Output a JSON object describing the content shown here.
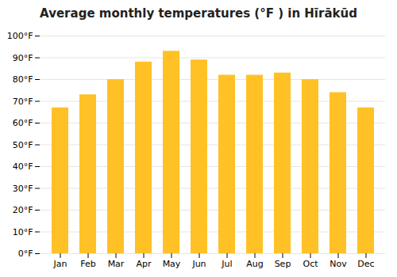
{
  "chart_data": {
    "type": "bar",
    "title": "Average monthly temperatures (°F ) in Hīrākūd",
    "categories": [
      "Jan",
      "Feb",
      "Mar",
      "Apr",
      "May",
      "Jun",
      "Jul",
      "Aug",
      "Sep",
      "Oct",
      "Nov",
      "Dec"
    ],
    "values": [
      67,
      73,
      80,
      88,
      93,
      89,
      82,
      82,
      83,
      80,
      74,
      67
    ],
    "color": "#FFC125",
    "ylim": [
      0,
      100
    ],
    "yticks": [
      {
        "value": 0,
        "label": "0°F"
      },
      {
        "value": 10,
        "label": "10°F"
      },
      {
        "value": 20,
        "label": "20°F"
      },
      {
        "value": 30,
        "label": "30°F"
      },
      {
        "value": 40,
        "label": "40°F"
      },
      {
        "value": 50,
        "label": "50°F"
      },
      {
        "value": 60,
        "label": "60°F"
      },
      {
        "value": 70,
        "label": "70°F"
      },
      {
        "value": 80,
        "label": "80°F"
      },
      {
        "value": 90,
        "label": "90°F"
      },
      {
        "value": 100,
        "label": "100°F"
      }
    ],
    "grid": true
  }
}
